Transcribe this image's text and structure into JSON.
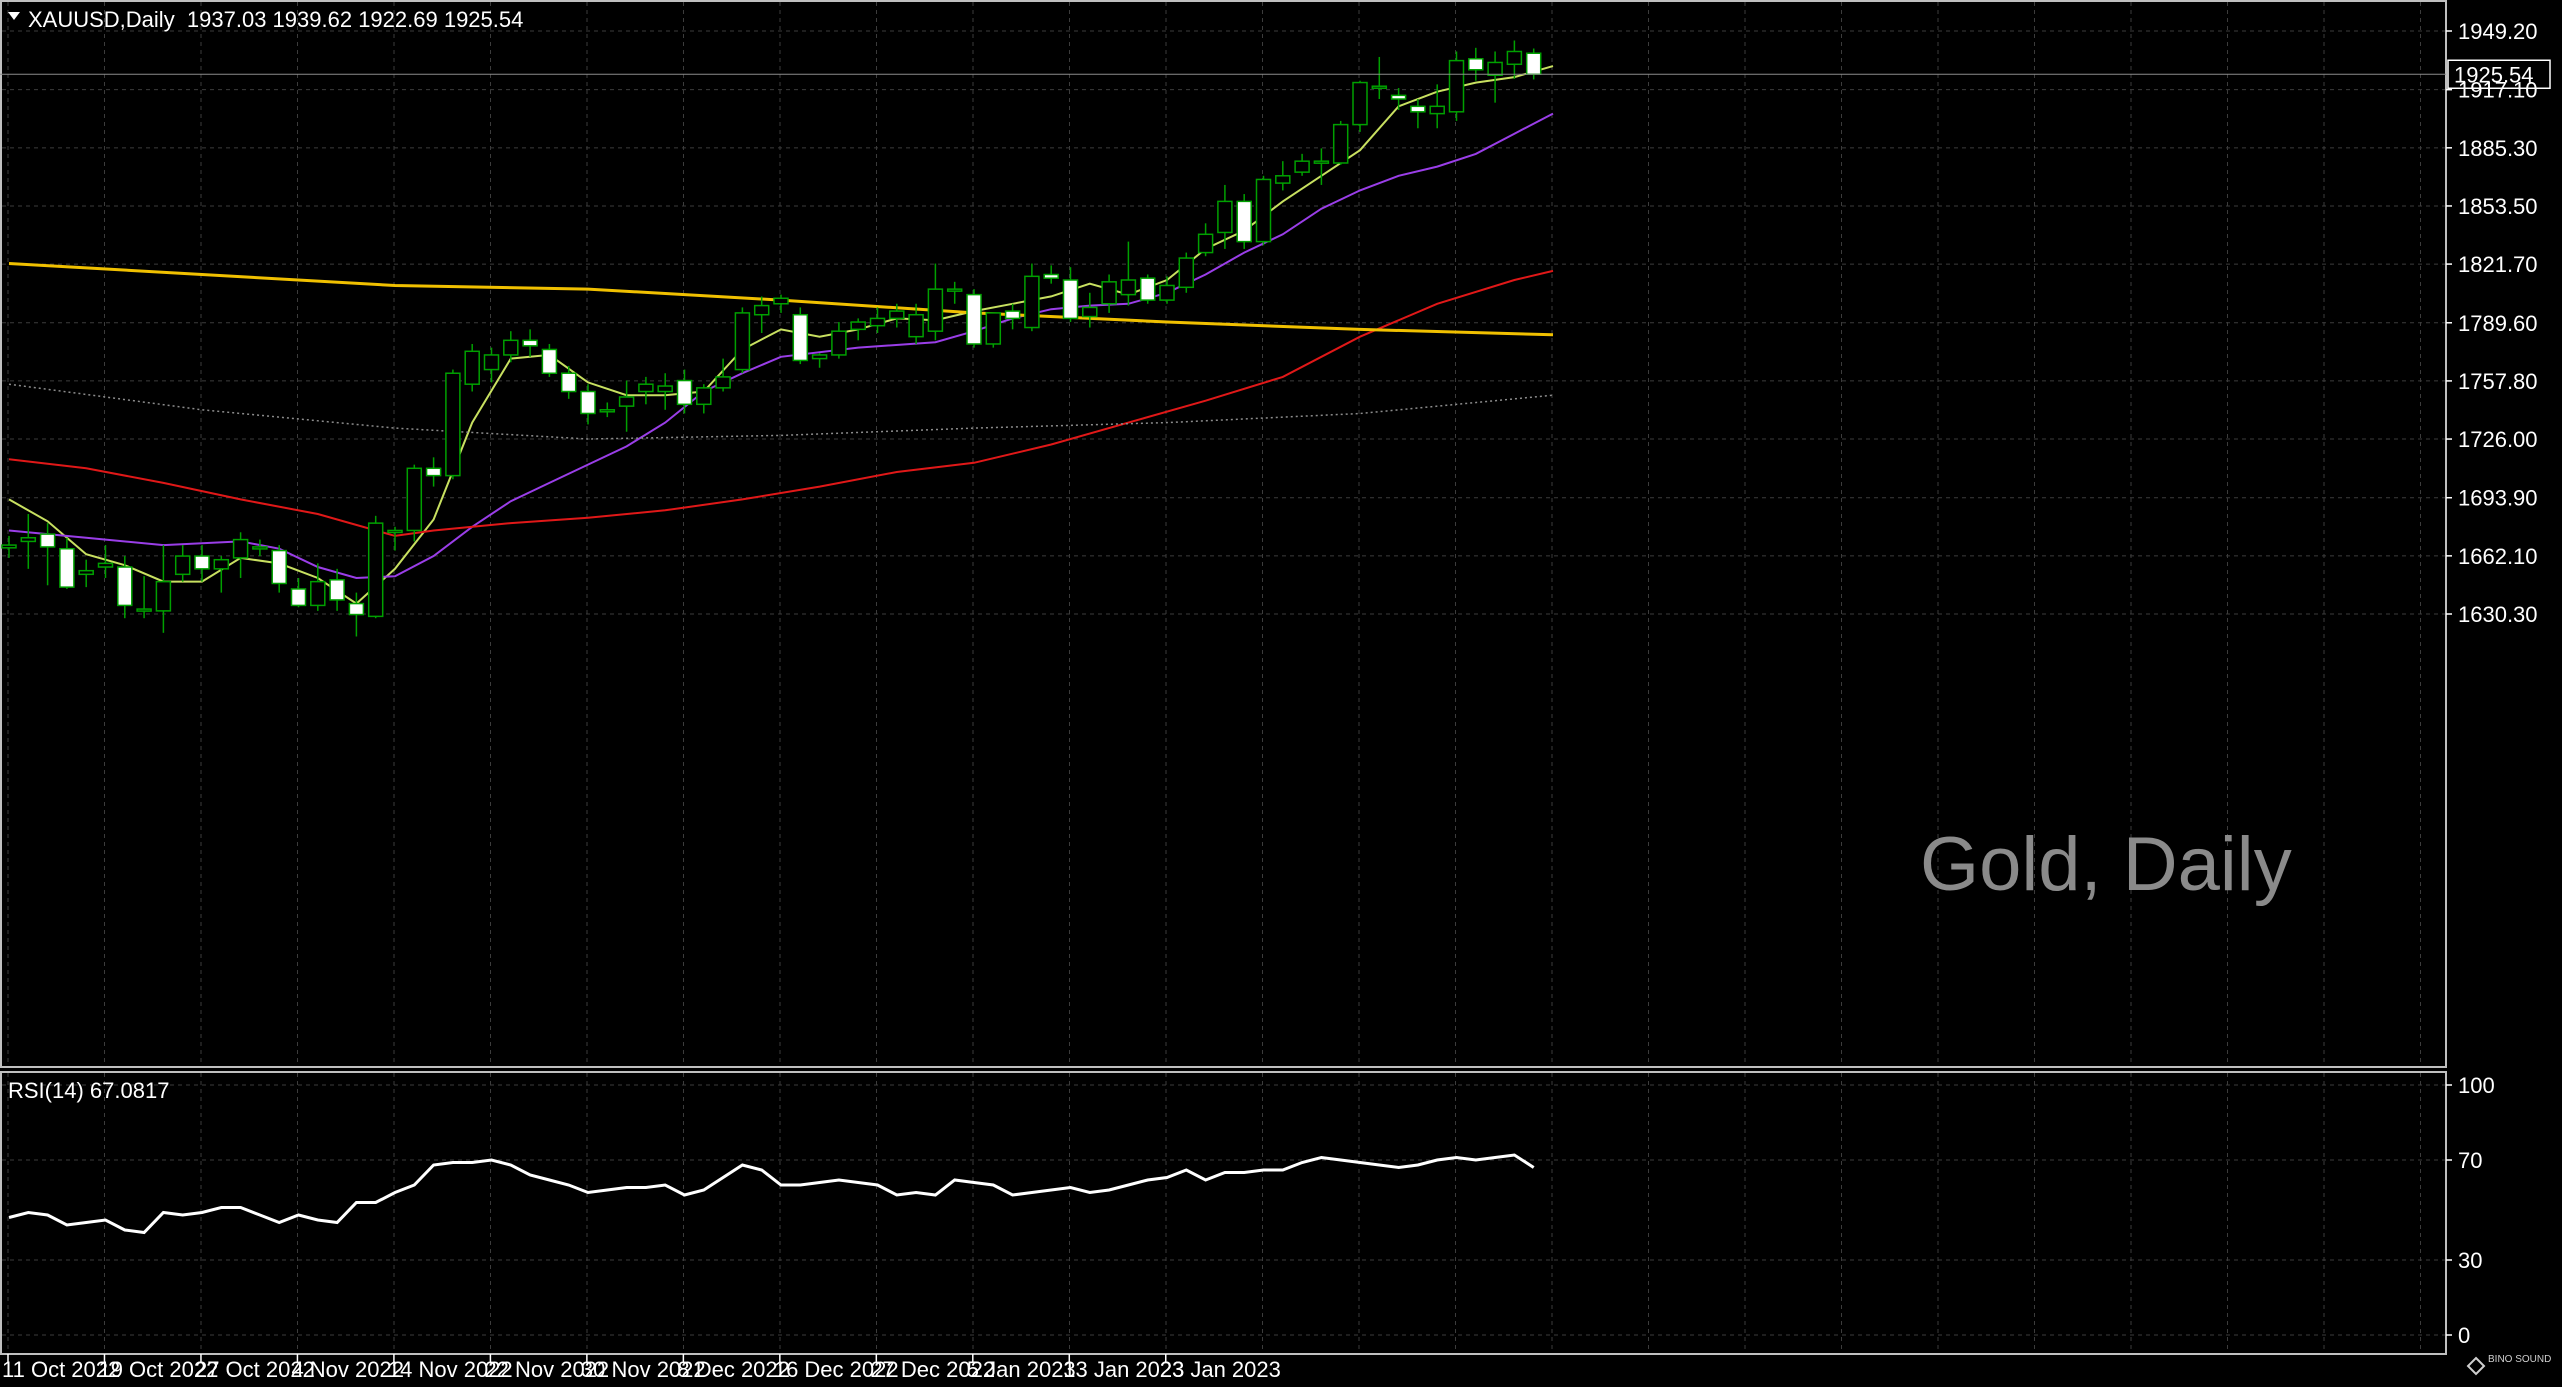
{
  "header": {
    "symbol_line": "XAUUSD,Daily  1937.03 1939.62 1922.69 1925.54",
    "rsi_label": "RSI(14) 67.0817"
  },
  "watermark": "Gold, Daily",
  "logo_text": "BINO SOUND",
  "last_price_label": "1925.54",
  "colors": {
    "background": "#000000",
    "grid": "#3c3c3c",
    "bull_candle": "#000000",
    "bear_candle": "#ffffff",
    "wick": "#00a000",
    "ma_fast": "#c8e060",
    "ma_mid": "#9a3ee8",
    "ma_slow": "#e01818",
    "ma_200": "#f0c000",
    "ma_dotted": "#8c8c8c",
    "rsi": "#ffffff"
  },
  "chart_data": [
    {
      "type": "candlestick",
      "title": "XAUUSD,Daily",
      "ylim": [
        1605,
        1960
      ],
      "y_ticks": [
        1949.2,
        1917.1,
        1885.3,
        1853.5,
        1821.7,
        1789.6,
        1757.8,
        1726.0,
        1693.9,
        1662.1,
        1630.3
      ],
      "x_tick_labels": [
        "11 Oct 2022",
        "19 Oct 2022",
        "27 Oct 2022",
        "4 Nov 2022",
        "14 Nov 2022",
        "22 Nov 2022",
        "30 Nov 2022",
        "8 Dec 2022",
        "16 Dec 2022",
        "27 Dec 2022",
        "5 Jan 2023",
        "13 Jan 2023",
        "23 Jan 2023"
      ],
      "x_tick_index": [
        0,
        6,
        12,
        18,
        24,
        30,
        36,
        42,
        48,
        54,
        60,
        66,
        72
      ],
      "last_price": 1925.54,
      "candles": [
        {
          "o": 1666.5,
          "h": 1673.0,
          "l": 1661.0,
          "c": 1668.0
        },
        {
          "o": 1670.0,
          "h": 1685.0,
          "l": 1655.0,
          "c": 1672.0
        },
        {
          "o": 1674.0,
          "h": 1680.0,
          "l": 1646.0,
          "c": 1667.0
        },
        {
          "o": 1666.0,
          "h": 1672.0,
          "l": 1644.0,
          "c": 1645.0
        },
        {
          "o": 1652.0,
          "h": 1660.0,
          "l": 1645.0,
          "c": 1654.0
        },
        {
          "o": 1656.0,
          "h": 1668.0,
          "l": 1650.0,
          "c": 1658.0
        },
        {
          "o": 1656.0,
          "h": 1662.0,
          "l": 1628.0,
          "c": 1635.0
        },
        {
          "o": 1633.0,
          "h": 1651.0,
          "l": 1628.0,
          "c": 1633.0
        },
        {
          "o": 1632.0,
          "h": 1668.0,
          "l": 1620.0,
          "c": 1648.0
        },
        {
          "o": 1652.0,
          "h": 1668.0,
          "l": 1648.0,
          "c": 1662.0
        },
        {
          "o": 1662.0,
          "h": 1668.0,
          "l": 1648.0,
          "c": 1655.0
        },
        {
          "o": 1655.0,
          "h": 1662.0,
          "l": 1642.0,
          "c": 1660.0
        },
        {
          "o": 1661.0,
          "h": 1675.0,
          "l": 1650.0,
          "c": 1671.0
        },
        {
          "o": 1666.0,
          "h": 1671.0,
          "l": 1662.0,
          "c": 1667.0
        },
        {
          "o": 1665.0,
          "h": 1668.0,
          "l": 1642.0,
          "c": 1647.0
        },
        {
          "o": 1644.0,
          "h": 1650.0,
          "l": 1634.0,
          "c": 1635.0
        },
        {
          "o": 1635.0,
          "h": 1658.0,
          "l": 1632.0,
          "c": 1648.0
        },
        {
          "o": 1649.0,
          "h": 1655.0,
          "l": 1632.0,
          "c": 1638.0
        },
        {
          "o": 1636.0,
          "h": 1642.0,
          "l": 1618.0,
          "c": 1630.0
        },
        {
          "o": 1629.0,
          "h": 1684.0,
          "l": 1628.0,
          "c": 1680.0
        },
        {
          "o": 1675.0,
          "h": 1678.0,
          "l": 1665.0,
          "c": 1676.0
        },
        {
          "o": 1676.0,
          "h": 1712.0,
          "l": 1670.0,
          "c": 1710.0
        },
        {
          "o": 1710.0,
          "h": 1716.0,
          "l": 1700.0,
          "c": 1706.0
        },
        {
          "o": 1706.0,
          "h": 1764.0,
          "l": 1704.0,
          "c": 1762.0
        },
        {
          "o": 1756.0,
          "h": 1778.0,
          "l": 1752.0,
          "c": 1774.0
        },
        {
          "o": 1764.0,
          "h": 1776.0,
          "l": 1757.0,
          "c": 1772.0
        },
        {
          "o": 1772.0,
          "h": 1785.0,
          "l": 1768.0,
          "c": 1780.0
        },
        {
          "o": 1780.0,
          "h": 1786.0,
          "l": 1771.0,
          "c": 1777.0
        },
        {
          "o": 1775.0,
          "h": 1778.0,
          "l": 1760.0,
          "c": 1762.0
        },
        {
          "o": 1762.0,
          "h": 1766.0,
          "l": 1748.0,
          "c": 1752.0
        },
        {
          "o": 1752.0,
          "h": 1756.0,
          "l": 1734.0,
          "c": 1740.0
        },
        {
          "o": 1741.0,
          "h": 1746.0,
          "l": 1738.0,
          "c": 1742.0
        },
        {
          "o": 1744.0,
          "h": 1758.0,
          "l": 1730.0,
          "c": 1749.0
        },
        {
          "o": 1752.0,
          "h": 1760.0,
          "l": 1745.0,
          "c": 1756.0
        },
        {
          "o": 1752.0,
          "h": 1762.0,
          "l": 1742.0,
          "c": 1755.0
        },
        {
          "o": 1758.0,
          "h": 1764.0,
          "l": 1740.0,
          "c": 1745.0
        },
        {
          "o": 1745.0,
          "h": 1756.0,
          "l": 1740.0,
          "c": 1754.0
        },
        {
          "o": 1754.0,
          "h": 1770.0,
          "l": 1752.0,
          "c": 1760.0
        },
        {
          "o": 1764.0,
          "h": 1798.0,
          "l": 1762.0,
          "c": 1795.0
        },
        {
          "o": 1794.0,
          "h": 1804.0,
          "l": 1784.0,
          "c": 1799.0
        },
        {
          "o": 1800.0,
          "h": 1805.0,
          "l": 1795.0,
          "c": 1803.0
        },
        {
          "o": 1794.0,
          "h": 1798.0,
          "l": 1767.0,
          "c": 1769.0
        },
        {
          "o": 1770.0,
          "h": 1773.0,
          "l": 1765.0,
          "c": 1772.0
        },
        {
          "o": 1772.0,
          "h": 1790.0,
          "l": 1770.0,
          "c": 1785.0
        },
        {
          "o": 1786.0,
          "h": 1792.0,
          "l": 1780.0,
          "c": 1790.0
        },
        {
          "o": 1788.0,
          "h": 1798.0,
          "l": 1784.0,
          "c": 1792.0
        },
        {
          "o": 1792.0,
          "h": 1800.0,
          "l": 1787.0,
          "c": 1796.0
        },
        {
          "o": 1782.0,
          "h": 1800.0,
          "l": 1778.0,
          "c": 1794.0
        },
        {
          "o": 1785.0,
          "h": 1822.0,
          "l": 1780.0,
          "c": 1808.0
        },
        {
          "o": 1808.0,
          "h": 1812.0,
          "l": 1800.0,
          "c": 1808.0
        },
        {
          "o": 1805.0,
          "h": 1808.0,
          "l": 1776.0,
          "c": 1778.0
        },
        {
          "o": 1778.0,
          "h": 1795.0,
          "l": 1776.0,
          "c": 1795.0
        },
        {
          "o": 1796.0,
          "h": 1800.0,
          "l": 1786.0,
          "c": 1792.0
        },
        {
          "o": 1787.0,
          "h": 1822.0,
          "l": 1785.0,
          "c": 1815.0
        },
        {
          "o": 1816.0,
          "h": 1821.0,
          "l": 1811.0,
          "c": 1814.0
        },
        {
          "o": 1813.0,
          "h": 1820.0,
          "l": 1790.0,
          "c": 1792.0
        },
        {
          "o": 1793.0,
          "h": 1806.0,
          "l": 1787.0,
          "c": 1798.0
        },
        {
          "o": 1800.0,
          "h": 1816.0,
          "l": 1795.0,
          "c": 1812.0
        },
        {
          "o": 1805.0,
          "h": 1834.0,
          "l": 1799.0,
          "c": 1813.0
        },
        {
          "o": 1814.0,
          "h": 1816.0,
          "l": 1800.0,
          "c": 1802.0
        },
        {
          "o": 1802.0,
          "h": 1815.0,
          "l": 1800.0,
          "c": 1810.0
        },
        {
          "o": 1809.0,
          "h": 1828.0,
          "l": 1806.0,
          "c": 1825.0
        },
        {
          "o": 1828.0,
          "h": 1844.0,
          "l": 1826.0,
          "c": 1838.0
        },
        {
          "o": 1839.0,
          "h": 1865.0,
          "l": 1830.0,
          "c": 1856.0
        },
        {
          "o": 1856.0,
          "h": 1860.0,
          "l": 1830.0,
          "c": 1834.0
        },
        {
          "o": 1834.0,
          "h": 1870.0,
          "l": 1832.0,
          "c": 1868.0
        },
        {
          "o": 1866.0,
          "h": 1878.0,
          "l": 1862.0,
          "c": 1870.0
        },
        {
          "o": 1872.0,
          "h": 1882.0,
          "l": 1870.0,
          "c": 1878.0
        },
        {
          "o": 1878.0,
          "h": 1885.0,
          "l": 1865.0,
          "c": 1878.0
        },
        {
          "o": 1877.0,
          "h": 1900.0,
          "l": 1876.0,
          "c": 1898.0
        },
        {
          "o": 1898.0,
          "h": 1922.0,
          "l": 1894.0,
          "c": 1921.0
        },
        {
          "o": 1918.0,
          "h": 1935.0,
          "l": 1912.0,
          "c": 1919.0
        },
        {
          "o": 1914.0,
          "h": 1918.0,
          "l": 1906.0,
          "c": 1912.0
        },
        {
          "o": 1908.0,
          "h": 1912.0,
          "l": 1896.0,
          "c": 1905.0
        },
        {
          "o": 1904.0,
          "h": 1920.0,
          "l": 1896.0,
          "c": 1908.0
        },
        {
          "o": 1905.0,
          "h": 1938.0,
          "l": 1900.0,
          "c": 1933.0
        },
        {
          "o": 1934.0,
          "h": 1940.0,
          "l": 1922.0,
          "c": 1928.0
        },
        {
          "o": 1925.0,
          "h": 1938.0,
          "l": 1910.0,
          "c": 1932.0
        },
        {
          "o": 1931.0,
          "h": 1944.0,
          "l": 1923.0,
          "c": 1938.0
        },
        {
          "o": 1937.03,
          "h": 1939.62,
          "l": 1922.69,
          "c": 1925.54
        }
      ],
      "moving_averages": [
        {
          "style": "ma_fast",
          "points": [
            [
              0,
              1693
            ],
            [
              2,
              1681
            ],
            [
              4,
              1663
            ],
            [
              6,
              1657
            ],
            [
              8,
              1648
            ],
            [
              10,
              1648
            ],
            [
              12,
              1661
            ],
            [
              14,
              1658
            ],
            [
              16,
              1650
            ],
            [
              18,
              1636
            ],
            [
              20,
              1655
            ],
            [
              22,
              1682
            ],
            [
              24,
              1735
            ],
            [
              26,
              1770
            ],
            [
              28,
              1772
            ],
            [
              30,
              1757
            ],
            [
              32,
              1750
            ],
            [
              34,
              1750
            ],
            [
              36,
              1752
            ],
            [
              38,
              1775
            ],
            [
              40,
              1786
            ],
            [
              42,
              1782
            ],
            [
              44,
              1786
            ],
            [
              46,
              1792
            ],
            [
              48,
              1791
            ],
            [
              50,
              1796
            ],
            [
              52,
              1800
            ],
            [
              54,
              1804
            ],
            [
              56,
              1811
            ],
            [
              58,
              1805
            ],
            [
              60,
              1813
            ],
            [
              62,
              1830
            ],
            [
              64,
              1840
            ],
            [
              66,
              1856
            ],
            [
              68,
              1870
            ],
            [
              70,
              1884
            ],
            [
              72,
              1908
            ],
            [
              74,
              1916
            ],
            [
              76,
              1921
            ],
            [
              78,
              1924
            ],
            [
              80,
              1930
            ]
          ]
        },
        {
          "style": "ma_mid",
          "points": [
            [
              0,
              1676
            ],
            [
              4,
              1672
            ],
            [
              8,
              1668
            ],
            [
              12,
              1670
            ],
            [
              14,
              1666
            ],
            [
              16,
              1656
            ],
            [
              18,
              1650
            ],
            [
              20,
              1651
            ],
            [
              22,
              1662
            ],
            [
              24,
              1678
            ],
            [
              26,
              1692
            ],
            [
              28,
              1702
            ],
            [
              30,
              1712
            ],
            [
              32,
              1722
            ],
            [
              34,
              1735
            ],
            [
              36,
              1752
            ],
            [
              38,
              1762
            ],
            [
              40,
              1771
            ],
            [
              44,
              1776
            ],
            [
              48,
              1779
            ],
            [
              50,
              1785
            ],
            [
              52,
              1792
            ],
            [
              54,
              1797
            ],
            [
              56,
              1799
            ],
            [
              58,
              1800
            ],
            [
              60,
              1806
            ],
            [
              62,
              1816
            ],
            [
              64,
              1828
            ],
            [
              66,
              1838
            ],
            [
              68,
              1852
            ],
            [
              70,
              1862
            ],
            [
              72,
              1870
            ],
            [
              74,
              1875
            ],
            [
              76,
              1882
            ],
            [
              78,
              1893
            ],
            [
              80,
              1904
            ]
          ]
        },
        {
          "style": "ma_slow",
          "points": [
            [
              0,
              1715
            ],
            [
              4,
              1710
            ],
            [
              8,
              1702
            ],
            [
              12,
              1693
            ],
            [
              16,
              1685
            ],
            [
              20,
              1673
            ],
            [
              22,
              1676
            ],
            [
              26,
              1680
            ],
            [
              30,
              1683
            ],
            [
              34,
              1687
            ],
            [
              38,
              1693
            ],
            [
              42,
              1700
            ],
            [
              46,
              1708
            ],
            [
              50,
              1713
            ],
            [
              54,
              1723
            ],
            [
              58,
              1735
            ],
            [
              62,
              1747
            ],
            [
              66,
              1760
            ],
            [
              70,
              1782
            ],
            [
              74,
              1800
            ],
            [
              78,
              1813
            ],
            [
              80,
              1818
            ]
          ]
        },
        {
          "style": "ma_200",
          "points": [
            [
              0,
              1822
            ],
            [
              10,
              1816
            ],
            [
              20,
              1810
            ],
            [
              30,
              1808
            ],
            [
              40,
              1802
            ],
            [
              50,
              1795
            ],
            [
              60,
              1790
            ],
            [
              70,
              1786
            ],
            [
              80,
              1783
            ]
          ]
        },
        {
          "style": "ma_dotted",
          "points": [
            [
              0,
              1756
            ],
            [
              10,
              1742
            ],
            [
              20,
              1732
            ],
            [
              30,
              1726
            ],
            [
              40,
              1728
            ],
            [
              50,
              1732
            ],
            [
              60,
              1735
            ],
            [
              70,
              1740
            ],
            [
              80,
              1750
            ]
          ]
        }
      ]
    },
    {
      "type": "line",
      "title": "RSI(14)",
      "ylim": [
        0,
        100
      ],
      "y_ticks": [
        100,
        70,
        30,
        0
      ],
      "values": [
        47,
        49,
        48,
        44,
        45,
        46,
        42,
        41,
        49,
        48,
        49,
        51,
        51,
        48,
        45,
        48,
        46,
        45,
        53,
        53,
        57,
        60,
        68,
        69,
        69,
        70,
        68,
        64,
        62,
        60,
        57,
        58,
        59,
        59,
        60,
        56,
        58,
        63,
        68,
        66,
        60,
        60,
        61,
        62,
        61,
        60,
        56,
        57,
        56,
        62,
        61,
        60,
        56,
        57,
        58,
        59,
        57,
        58,
        60,
        62,
        63,
        66,
        62,
        65,
        65,
        66,
        66,
        69,
        71,
        70,
        69,
        68,
        67,
        68,
        70,
        71,
        70,
        71,
        72,
        67
      ]
    }
  ]
}
